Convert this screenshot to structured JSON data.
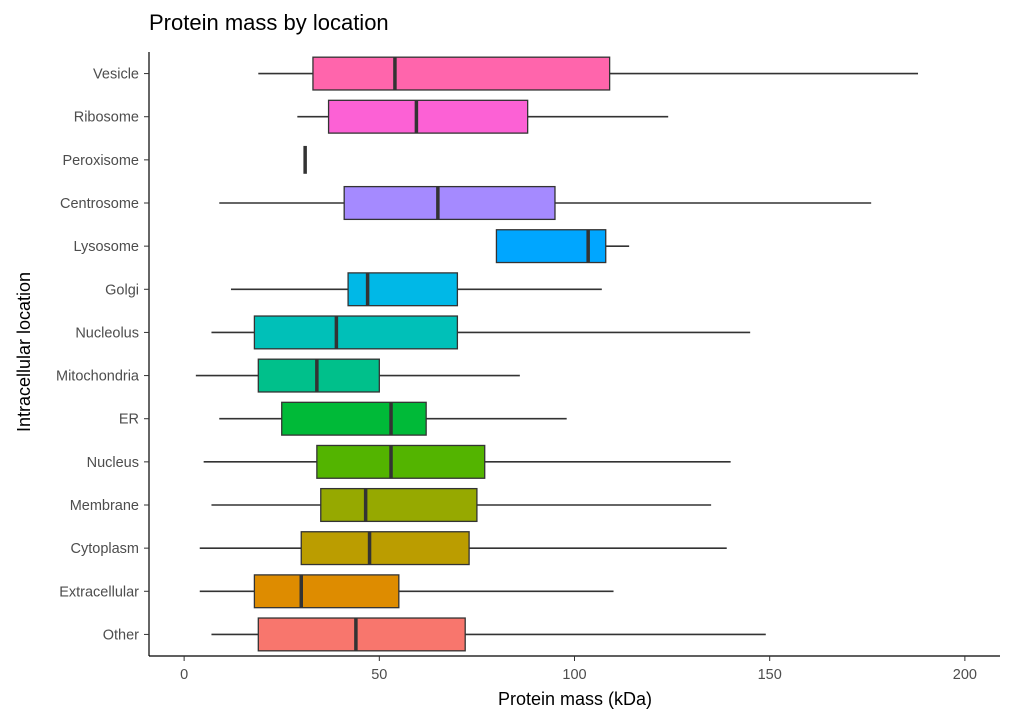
{
  "chart_data": {
    "type": "boxplot",
    "orientation": "horizontal",
    "title": "Protein mass by location",
    "xlabel": "Protein mass (kDa)",
    "ylabel": "Intracellular location",
    "xlim": [
      -9,
      209
    ],
    "x_ticks": [
      0,
      50,
      100,
      150,
      200
    ],
    "grid": false,
    "legend": "none",
    "categories": [
      "Vesicle",
      "Ribosome",
      "Peroxisome",
      "Centrosome",
      "Lysosome",
      "Golgi",
      "Nucleolus",
      "Mitochondria",
      "ER",
      "Nucleus",
      "Membrane",
      "Cytoplasm",
      "Extracellular",
      "Other"
    ],
    "series": [
      {
        "category": "Vesicle",
        "min": 19,
        "q1": 33,
        "median": 54,
        "q3": 109,
        "max": 188,
        "color": "#FF65AC"
      },
      {
        "category": "Ribosome",
        "min": 29,
        "q1": 37,
        "median": 59.5,
        "q3": 88,
        "max": 124,
        "color": "#FC61D5"
      },
      {
        "category": "Peroxisome",
        "min": 31,
        "q1": 31,
        "median": 31,
        "q3": 31,
        "max": 31,
        "color": "#E76BF3"
      },
      {
        "category": "Centrosome",
        "min": 9,
        "q1": 41,
        "median": 65,
        "q3": 95,
        "max": 176,
        "color": "#A58AFF"
      },
      {
        "category": "Lysosome",
        "min": 80,
        "q1": 80,
        "median": 103.5,
        "q3": 108,
        "max": 114,
        "color": "#00A6FF"
      },
      {
        "category": "Golgi",
        "min": 12,
        "q1": 42,
        "median": 47,
        "q3": 70,
        "max": 107,
        "color": "#00B8E7"
      },
      {
        "category": "Nucleolus",
        "min": 7,
        "q1": 18,
        "median": 39,
        "q3": 70,
        "max": 145,
        "color": "#00C0B8"
      },
      {
        "category": "Mitochondria",
        "min": 3,
        "q1": 19,
        "median": 34,
        "q3": 50,
        "max": 86,
        "color": "#00C08B"
      },
      {
        "category": "ER",
        "min": 9,
        "q1": 25,
        "median": 53,
        "q3": 62,
        "max": 98,
        "color": "#00BA38"
      },
      {
        "category": "Nucleus",
        "min": 5,
        "q1": 34,
        "median": 53,
        "q3": 77,
        "max": 140,
        "color": "#53B400"
      },
      {
        "category": "Membrane",
        "min": 7,
        "q1": 35,
        "median": 46.5,
        "q3": 75,
        "max": 135,
        "color": "#96A900"
      },
      {
        "category": "Cytoplasm",
        "min": 4,
        "q1": 30,
        "median": 47.5,
        "q3": 73,
        "max": 139,
        "color": "#BB9D00"
      },
      {
        "category": "Extracellular",
        "min": 4,
        "q1": 18,
        "median": 30,
        "q3": 55,
        "max": 110,
        "color": "#DE8C00"
      },
      {
        "category": "Other",
        "min": 7,
        "q1": 19,
        "median": 44,
        "q3": 72,
        "max": 149,
        "color": "#F8766D"
      }
    ]
  }
}
